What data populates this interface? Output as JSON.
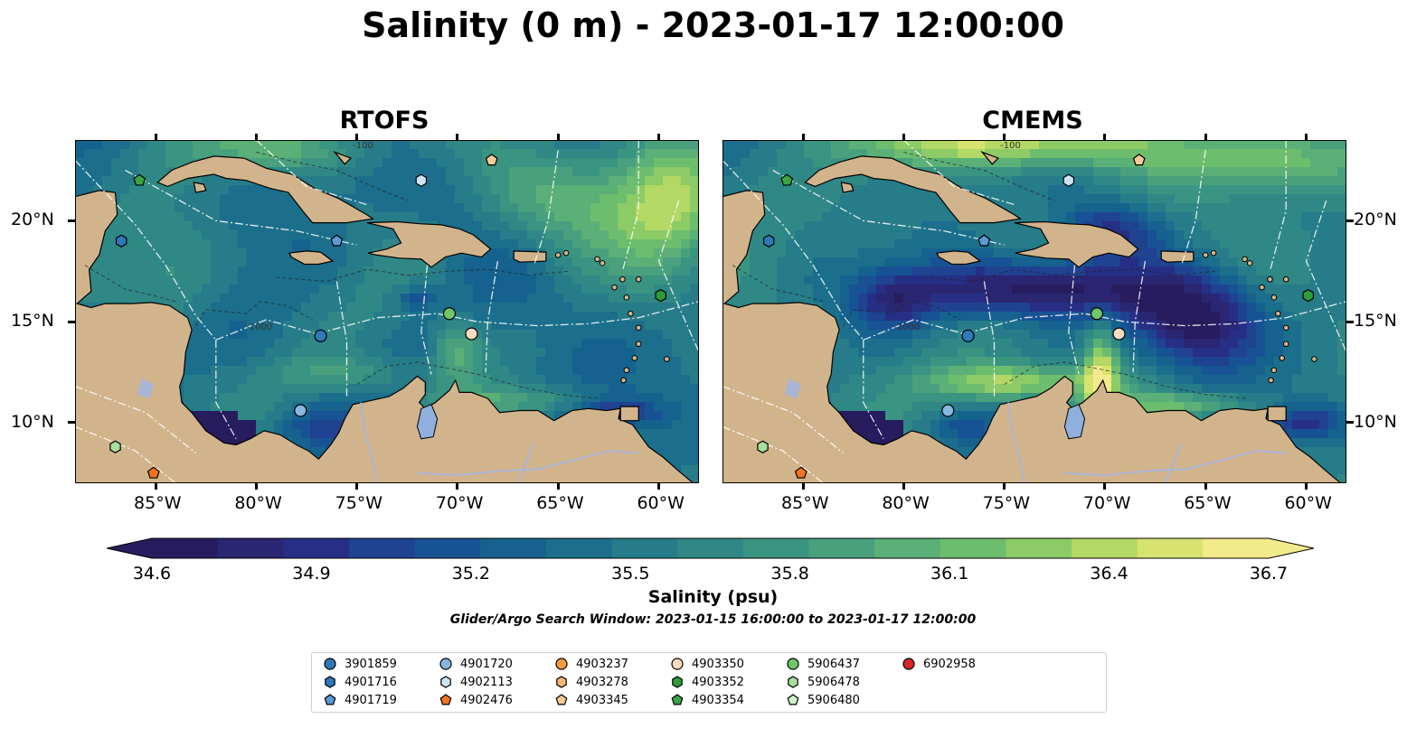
{
  "figure": {
    "title": "Salinity (0 m) - 2023-01-17 12:00:00",
    "search_window": "Glider/Argo Search Window: 2023-01-15 16:00:00 to 2023-01-17 12:00:00"
  },
  "chart_data": {
    "type": "heatmap",
    "title": "Salinity (0 m) - 2023-01-17 12:00:00",
    "panels": [
      {
        "title": "RTOFS",
        "colorbar_side": "left"
      },
      {
        "title": "CMEMS",
        "colorbar_side": "right"
      }
    ],
    "map_extent": {
      "lon": [
        -89,
        -58
      ],
      "lat": [
        7,
        24
      ]
    },
    "x_ticks": [
      -85,
      -80,
      -75,
      -70,
      -65,
      -60
    ],
    "x_tick_labels": [
      "85°W",
      "80°W",
      "75°W",
      "70°W",
      "65°W",
      "60°W"
    ],
    "y_ticks": [
      10,
      15,
      20
    ],
    "y_tick_labels": [
      "10°N",
      "15°N",
      "20°N"
    ],
    "colorbar": {
      "label": "Salinity (psu)",
      "range": [
        34.6,
        36.7
      ],
      "ticks": [
        34.6,
        34.9,
        35.2,
        35.5,
        35.8,
        36.1,
        36.4,
        36.7
      ],
      "tick_labels": [
        "34.6",
        "34.9",
        "35.2",
        "35.5",
        "35.8",
        "36.1",
        "36.4",
        "36.7"
      ],
      "extend": "both",
      "colors": [
        "#271c5e",
        "#2a2672",
        "#262f85",
        "#1f4291",
        "#175394",
        "#15628f",
        "#1b6f8c",
        "#267c89",
        "#2f8886",
        "#3a9482",
        "#48a07d",
        "#5ab076",
        "#6dbd6e",
        "#8ccb66",
        "#b3d865",
        "#d7e36f",
        "#f3ea8c"
      ]
    },
    "contour_labels": [
      "-100",
      "-1000"
    ],
    "floats": [
      {
        "id": "3901859",
        "marker": "circle",
        "color": "#2e79b9",
        "positions": []
      },
      {
        "id": "4901716",
        "marker": "hexagon",
        "color": "#2e79b9",
        "positions": [
          [
            -86.7,
            19.0
          ]
        ]
      },
      {
        "id": "4901719",
        "marker": "pentagon",
        "color": "#5a9bd4",
        "positions": [
          [
            -76.0,
            19.0
          ]
        ]
      },
      {
        "id": "4901720",
        "marker": "circle",
        "color": "#87b8e0",
        "positions": [
          [
            -77.8,
            10.6
          ]
        ]
      },
      {
        "id": "4902113",
        "marker": "hexagon",
        "color": "#cde3f4",
        "positions": [
          [
            -71.8,
            22.0
          ]
        ]
      },
      {
        "id": "4902476",
        "marker": "pentagon",
        "color": "#f37321",
        "positions": [
          [
            -85.1,
            7.5
          ]
        ]
      },
      {
        "id": "4903237",
        "marker": "circle",
        "color": "#f59a3d",
        "positions": []
      },
      {
        "id": "4903278",
        "marker": "hexagon",
        "color": "#f8b475",
        "positions": []
      },
      {
        "id": "4903345",
        "marker": "pentagon",
        "color": "#f8c998",
        "positions": [
          [
            -68.3,
            23.0
          ]
        ]
      },
      {
        "id": "4903350",
        "marker": "circle",
        "color": "#fcdcbf",
        "positions": [
          [
            -69.3,
            14.4
          ]
        ]
      },
      {
        "id": "4903352",
        "marker": "hexagon",
        "color": "#2e9b39",
        "positions": [
          [
            -59.9,
            16.3
          ]
        ]
      },
      {
        "id": "4903354",
        "marker": "pentagon",
        "color": "#3aa346",
        "positions": [
          [
            -85.8,
            22.0
          ]
        ]
      },
      {
        "id": "5906437",
        "marker": "circle",
        "color": "#6ec56a",
        "positions": [
          [
            -70.4,
            15.4
          ]
        ]
      },
      {
        "id": "5906478",
        "marker": "hexagon",
        "color": "#a6de9b",
        "positions": [
          [
            -87.0,
            8.8
          ]
        ]
      },
      {
        "id": "5906480",
        "marker": "pentagon",
        "color": "#d2f0cb",
        "positions": []
      },
      {
        "id": "6902958",
        "marker": "circle",
        "color": "#d62728",
        "positions": []
      }
    ],
    "gliders": [
      {
        "marker": "circle",
        "color": "#2e79b9",
        "positions": [
          [
            -76.8,
            14.3
          ]
        ]
      }
    ]
  },
  "legend": {
    "items": [
      {
        "label": "3901859",
        "marker": "circle",
        "color": "#2e79b9"
      },
      {
        "label": "4901716",
        "marker": "hexagon",
        "color": "#2e79b9"
      },
      {
        "label": "4901719",
        "marker": "pentagon",
        "color": "#5a9bd4"
      },
      {
        "label": "4901720",
        "marker": "circle",
        "color": "#87b8e0"
      },
      {
        "label": "4902113",
        "marker": "hexagon",
        "color": "#cde3f4"
      },
      {
        "label": "4902476",
        "marker": "pentagon",
        "color": "#f37321"
      },
      {
        "label": "4903237",
        "marker": "circle",
        "color": "#f59a3d"
      },
      {
        "label": "4903278",
        "marker": "hexagon",
        "color": "#f8b475"
      },
      {
        "label": "4903345",
        "marker": "pentagon",
        "color": "#f8c998"
      },
      {
        "label": "4903350",
        "marker": "circle",
        "color": "#fcdcbf"
      },
      {
        "label": "4903352",
        "marker": "hexagon",
        "color": "#2e9b39"
      },
      {
        "label": "4903354",
        "marker": "pentagon",
        "color": "#3aa346"
      },
      {
        "label": "5906437",
        "marker": "circle",
        "color": "#6ec56a"
      },
      {
        "label": "5906478",
        "marker": "hexagon",
        "color": "#a6de9b"
      },
      {
        "label": "5906480",
        "marker": "pentagon",
        "color": "#d2f0cb"
      },
      {
        "label": "6902958",
        "marker": "circle",
        "color": "#d62728"
      }
    ]
  },
  "colors": {
    "land": "#d2b48c",
    "river": "#aab4d6",
    "lake": "#8fb0df"
  }
}
